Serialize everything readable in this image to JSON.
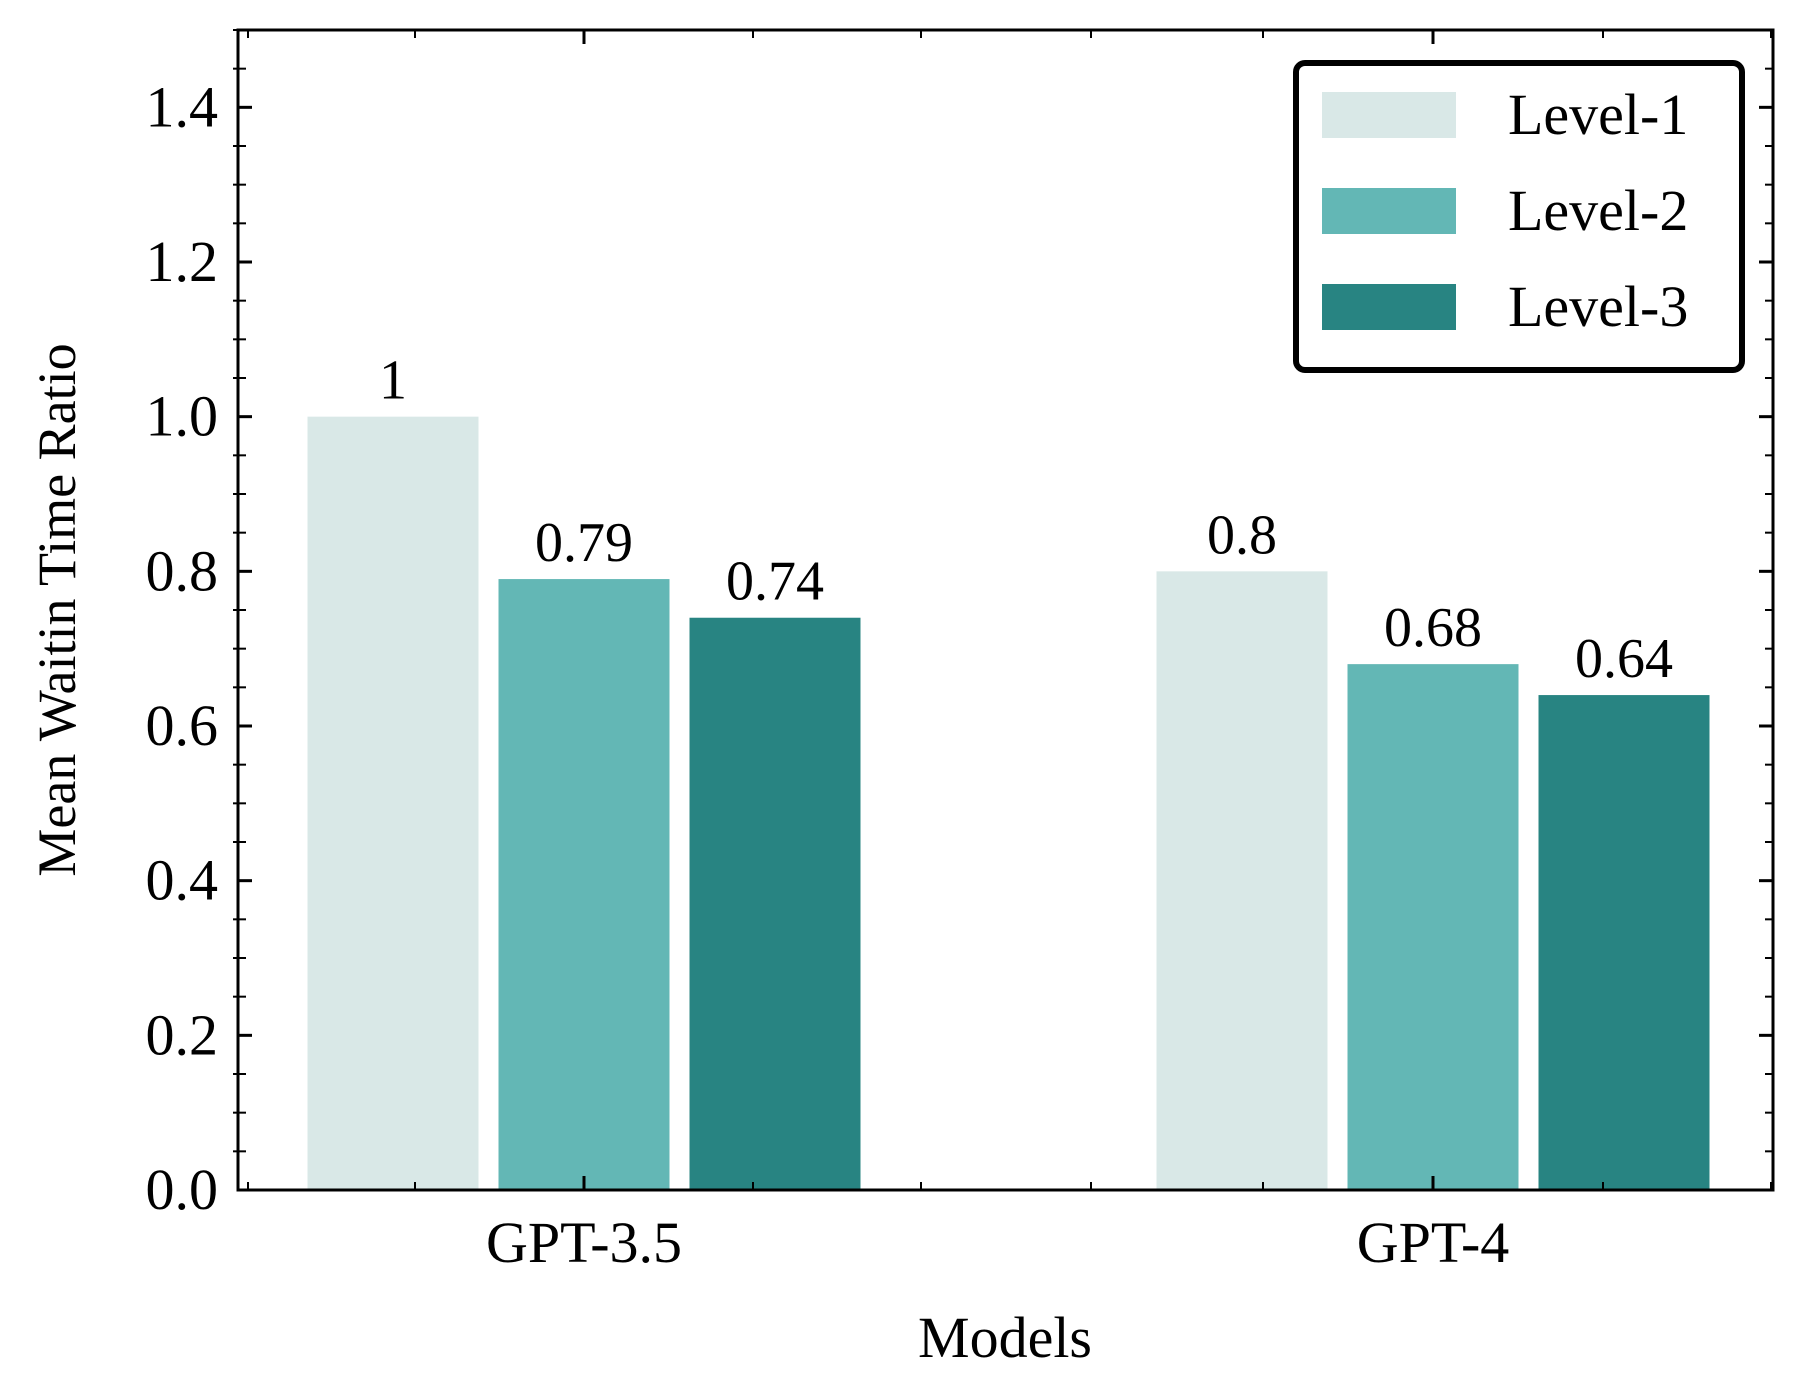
{
  "chart_data": {
    "type": "bar",
    "title": "",
    "xlabel": "Models",
    "ylabel": "Mean Waitin Time Ratio",
    "categories": [
      "GPT-3.5",
      "GPT-4"
    ],
    "series": [
      {
        "name": "Level-1",
        "color": "#d9e8e7",
        "values": [
          1.0,
          0.8
        ],
        "labels": [
          "1",
          "0.8"
        ]
      },
      {
        "name": "Level-2",
        "color": "#63b7b5",
        "values": [
          0.79,
          0.68
        ],
        "labels": [
          "0.79",
          "0.68"
        ]
      },
      {
        "name": "Level-3",
        "color": "#288482",
        "values": [
          0.74,
          0.64
        ],
        "labels": [
          "0.74",
          "0.64"
        ]
      }
    ],
    "ylim": [
      0,
      1.5
    ],
    "yticks": [
      0.0,
      0.2,
      0.4,
      0.6,
      0.8,
      1.0,
      1.2,
      1.4
    ],
    "ytick_labels": [
      "0.0",
      "0.2",
      "0.4",
      "0.6",
      "0.8",
      "1.0",
      "1.2",
      "1.4"
    ],
    "legend_position": "top-right",
    "grid": false
  }
}
